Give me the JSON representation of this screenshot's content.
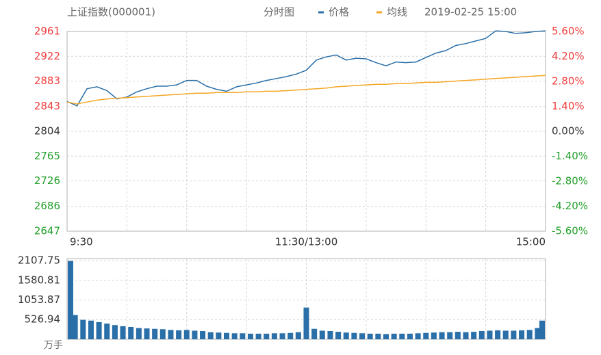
{
  "chart_data": [
    {
      "type": "line",
      "title": "上证指数(000001)",
      "subtitle": "分时图",
      "timestamp": "2019-02-25 15:00",
      "x": [
        0,
        5,
        10,
        15,
        20,
        25,
        30,
        35,
        40,
        45,
        50,
        55,
        60,
        65,
        70,
        75,
        80,
        85,
        90,
        95,
        100,
        105,
        110,
        115,
        120,
        125,
        130,
        135,
        140,
        145,
        150,
        155,
        160,
        165,
        170,
        175,
        180,
        185,
        190,
        195,
        200,
        205,
        210,
        215,
        220,
        225,
        230,
        235,
        240
      ],
      "series": [
        {
          "name": "价格",
          "color": "#2a6fa8",
          "values": [
            2851,
            2844,
            2871,
            2874,
            2868,
            2855,
            2858,
            2866,
            2871,
            2875,
            2875,
            2877,
            2884,
            2884,
            2875,
            2870,
            2867,
            2874,
            2877,
            2880,
            2884,
            2887,
            2890,
            2894,
            2900,
            2916,
            2921,
            2924,
            2916,
            2919,
            2918,
            2912,
            2907,
            2913,
            2912,
            2913,
            2920,
            2927,
            2931,
            2939,
            2942,
            2946,
            2950,
            2962,
            2961,
            2958,
            2959,
            2961,
            2962
          ]
        },
        {
          "name": "均线",
          "color": "#f5a623",
          "values": [
            2850,
            2847,
            2850,
            2853,
            2855,
            2856,
            2857,
            2858,
            2859,
            2860,
            2861,
            2862,
            2863,
            2864,
            2864,
            2865,
            2865,
            2865,
            2866,
            2866,
            2867,
            2867,
            2868,
            2869,
            2870,
            2871,
            2872,
            2874,
            2875,
            2876,
            2877,
            2878,
            2878,
            2879,
            2879,
            2880,
            2881,
            2881,
            2882,
            2883,
            2884,
            2885,
            2886,
            2887,
            2888,
            2889,
            2890,
            2891,
            2892
          ]
        }
      ],
      "xlim": [
        0,
        240
      ],
      "xticks": [
        {
          "value": 0,
          "label": "9:30"
        },
        {
          "value": 120,
          "label": "11:30/13:00"
        },
        {
          "value": 240,
          "label": "15:00"
        }
      ],
      "xgrid": [
        30,
        60,
        90,
        150,
        180,
        210
      ],
      "ylim": [
        2647,
        2961
      ],
      "yticks": [
        2961,
        2922,
        2883,
        2843,
        2804,
        2765,
        2726,
        2686,
        2647
      ],
      "y2lim": [
        -5.6,
        5.6
      ],
      "y2ticks": [
        {
          "value": 5.6,
          "label": "5.60%"
        },
        {
          "value": 4.2,
          "label": "4.20%"
        },
        {
          "value": 2.8,
          "label": "2.80%"
        },
        {
          "value": 1.4,
          "label": "1.40%"
        },
        {
          "value": 0,
          "label": "0.00%"
        },
        {
          "value": -1.4,
          "label": "-1.40%"
        },
        {
          "value": -2.8,
          "label": "-2.80%"
        },
        {
          "value": -4.2,
          "label": "-4.20%"
        },
        {
          "value": -5.6,
          "label": "-5.60%"
        }
      ],
      "tick_colors": {
        "up": "#f03c3c",
        "flat": "#333333",
        "down": "#22a02a"
      },
      "grid": true
    },
    {
      "type": "bar",
      "unit": "万手",
      "color": "#2a6fa8",
      "x": [
        0,
        4,
        8,
        12,
        16,
        20,
        24,
        28,
        32,
        36,
        40,
        44,
        48,
        52,
        56,
        60,
        64,
        68,
        72,
        76,
        80,
        84,
        88,
        92,
        96,
        100,
        104,
        108,
        112,
        116,
        120,
        124,
        128,
        132,
        136,
        140,
        144,
        148,
        152,
        156,
        160,
        164,
        168,
        172,
        176,
        180,
        184,
        188,
        192,
        196,
        200,
        204,
        208,
        212,
        216,
        220,
        224,
        228,
        232,
        236,
        240
      ],
      "values": [
        2100,
        650,
        520,
        500,
        460,
        420,
        380,
        350,
        330,
        300,
        290,
        280,
        270,
        250,
        240,
        250,
        230,
        220,
        190,
        180,
        170,
        160,
        160,
        150,
        150,
        150,
        160,
        160,
        170,
        190,
        850,
        280,
        230,
        220,
        200,
        180,
        170,
        160,
        150,
        150,
        140,
        150,
        150,
        150,
        160,
        170,
        180,
        190,
        190,
        200,
        190,
        200,
        220,
        230,
        240,
        230,
        230,
        240,
        250,
        300,
        500
      ],
      "xlim": [
        0,
        240
      ],
      "ylim": [
        0,
        2107.75
      ],
      "yticks": [
        2107.75,
        1580.81,
        1053.87,
        526.94
      ],
      "grid": true
    }
  ]
}
